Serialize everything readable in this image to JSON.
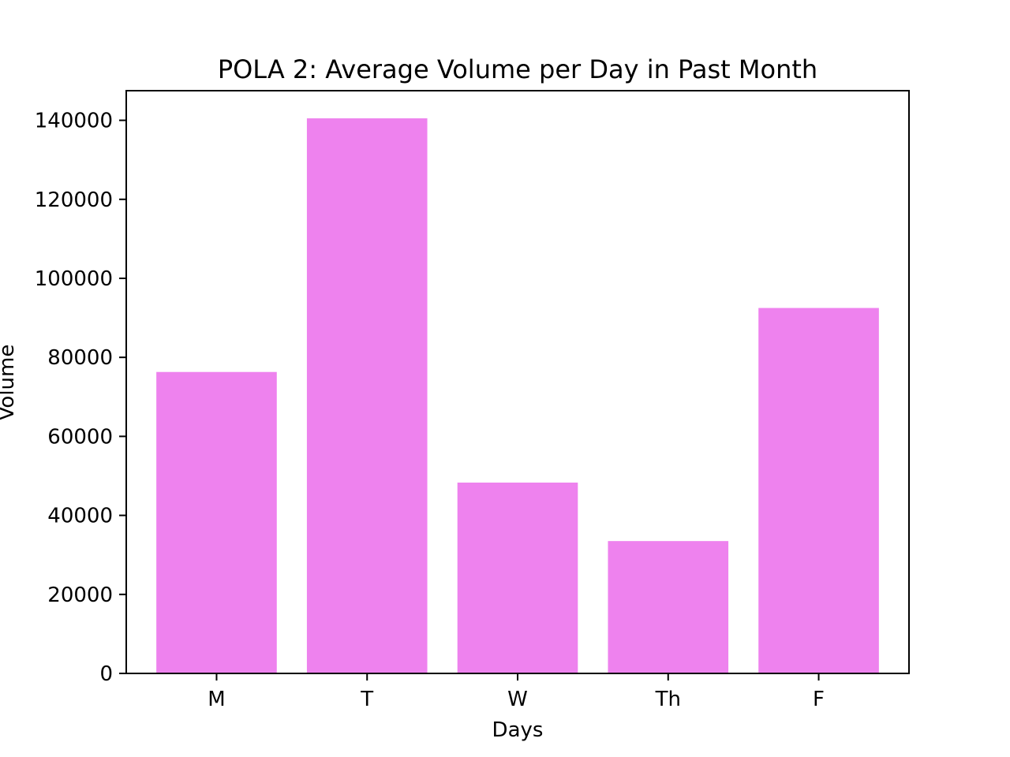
{
  "chart_data": {
    "type": "bar",
    "title": "POLA 2: Average Volume per Day in Past Month",
    "xlabel": "Days",
    "ylabel": "Volume",
    "categories": [
      "M",
      "T",
      "W",
      "Th",
      "F"
    ],
    "values": [
      76300,
      140500,
      48300,
      33500,
      92500
    ],
    "ylim": [
      0,
      147500
    ],
    "yticks": [
      0,
      20000,
      40000,
      60000,
      80000,
      100000,
      120000,
      140000
    ],
    "ytick_labels": [
      "0",
      "20000",
      "40000",
      "60000",
      "80000",
      "100000",
      "120000",
      "140000"
    ],
    "grid": false,
    "legend": "none",
    "bar_color": "#ee82ee"
  }
}
